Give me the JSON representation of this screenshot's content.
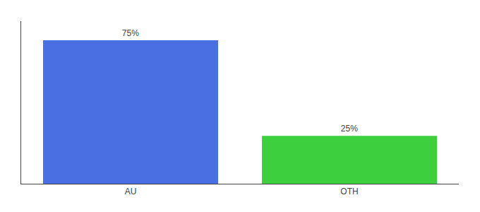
{
  "chart_data": {
    "type": "bar",
    "categories": [
      "AU",
      "OTH"
    ],
    "values": [
      75,
      25
    ],
    "colors": [
      "#4a6fe3",
      "#3ecf3e"
    ],
    "data_labels": true,
    "value_labels": [
      "75%",
      "25%"
    ],
    "ylim": [
      0,
      85
    ],
    "tick_labels": "x",
    "grid": false
  }
}
